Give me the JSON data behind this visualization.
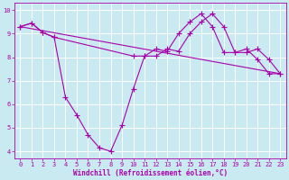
{
  "xlabel": "Windchill (Refroidissement éolien,°C)",
  "background_color": "#c8eaf0",
  "line_color": "#aa00aa",
  "xlim": [
    -0.5,
    23.5
  ],
  "ylim": [
    3.7,
    10.3
  ],
  "yticks": [
    4,
    5,
    6,
    7,
    8,
    9,
    10
  ],
  "xticks": [
    0,
    1,
    2,
    3,
    4,
    5,
    6,
    7,
    8,
    9,
    10,
    11,
    12,
    13,
    14,
    15,
    16,
    17,
    18,
    19,
    20,
    21,
    22,
    23
  ],
  "series": [
    {
      "x": [
        0,
        1,
        2,
        3,
        4,
        5,
        6,
        7,
        8,
        9,
        10,
        11,
        12,
        13,
        14,
        15,
        16,
        17,
        18,
        19,
        20,
        21,
        22,
        23
      ],
      "y": [
        9.3,
        9.45,
        9.05,
        8.85,
        6.3,
        5.55,
        4.7,
        4.15,
        4.0,
        5.1,
        6.65,
        8.05,
        8.05,
        8.35,
        8.25,
        9.0,
        9.5,
        9.85,
        9.3,
        8.2,
        8.2,
        8.35,
        7.9,
        7.3
      ]
    },
    {
      "x": [
        0,
        1,
        2,
        3,
        10,
        11,
        12,
        13,
        14,
        15,
        16,
        17,
        18,
        19,
        20,
        21,
        22,
        23
      ],
      "y": [
        9.3,
        9.45,
        9.05,
        8.85,
        8.05,
        8.05,
        8.35,
        8.25,
        9.0,
        9.5,
        9.85,
        9.3,
        8.2,
        8.2,
        8.35,
        7.9,
        7.3,
        7.3
      ]
    },
    {
      "x": [
        0,
        23
      ],
      "y": [
        9.3,
        7.3
      ]
    }
  ],
  "grid_color": "#ffffff",
  "tick_label_color": "#aa00aa",
  "font_name": "monospace",
  "xlabel_fontsize": 5.5,
  "tick_fontsize": 5.0,
  "linewidth": 0.8,
  "markersize": 2.2
}
